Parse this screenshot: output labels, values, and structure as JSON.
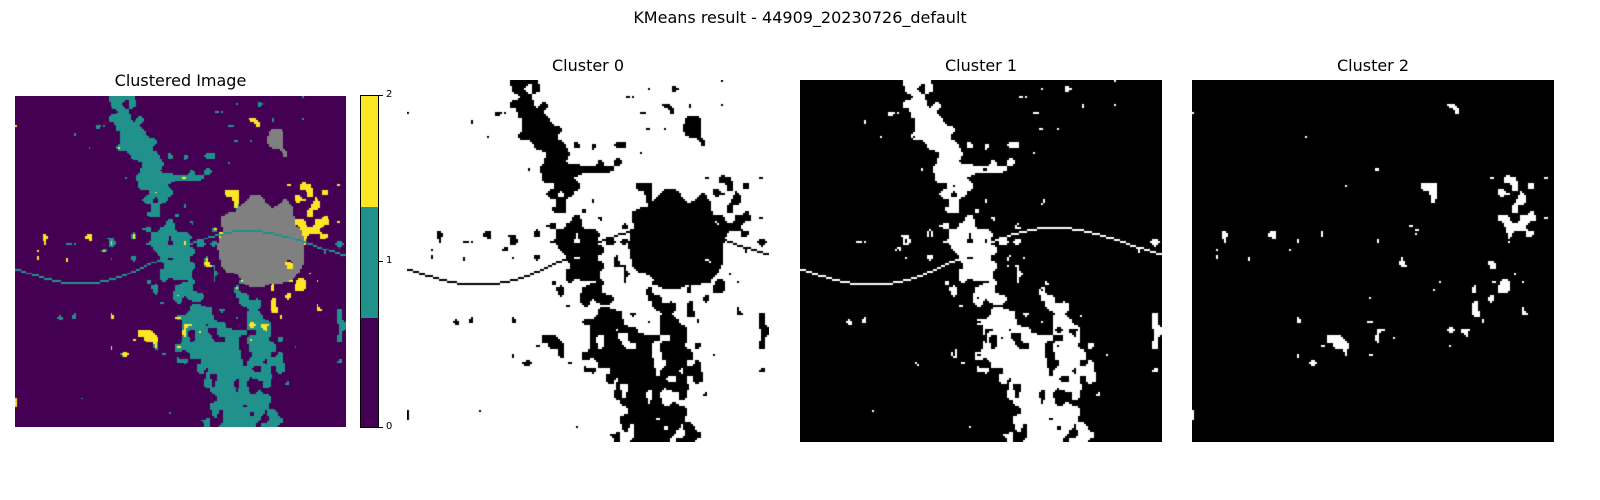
{
  "figure": {
    "suptitle": "KMeans result - 44909_20230726_default"
  },
  "panels": [
    {
      "title": "Clustered Image"
    },
    {
      "title": "Cluster 0"
    },
    {
      "title": "Cluster 1"
    },
    {
      "title": "Cluster 2"
    }
  ],
  "colorbar": {
    "ticks": [
      "0",
      "1",
      "2"
    ],
    "colors": [
      "#440154",
      "#21918c",
      "#fde725"
    ]
  },
  "colors": {
    "nodata": "#808080",
    "mask_on": "#ffffff",
    "mask_off": "#000000"
  }
}
